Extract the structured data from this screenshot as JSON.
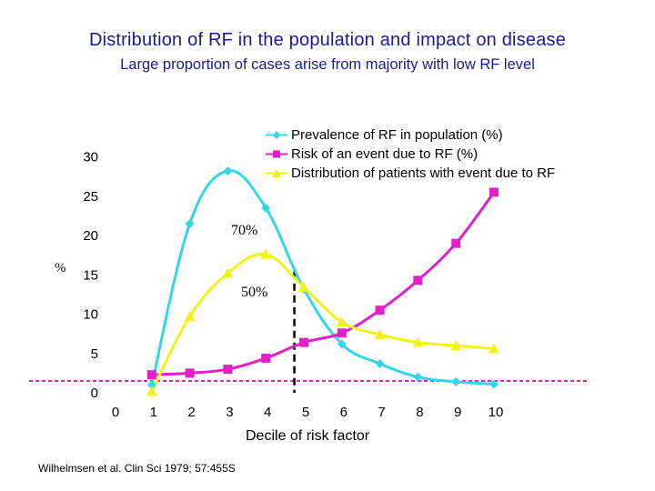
{
  "title": "Distribution of RF in the population and impact on disease",
  "subtitle": "Large proportion of cases arise from majority with low RF level",
  "source": "Wilhelmsen et al. Clin Sci 1979; 57:455S",
  "chart_data": {
    "type": "line",
    "xlabel": "Decile of risk factor",
    "ylabel": "%",
    "x_ticks": [
      0,
      1,
      2,
      3,
      4,
      5,
      6,
      7,
      8,
      9,
      10
    ],
    "y_ticks": [
      0,
      5,
      10,
      15,
      20,
      25,
      30
    ],
    "xlim": [
      0,
      10
    ],
    "ylim": [
      0,
      30
    ],
    "series": [
      {
        "name": "Prevalence of RF in population (%)",
        "color": "#33d6e8",
        "marker": "diamond",
        "x": [
          1,
          2,
          3,
          4,
          5,
          6,
          7,
          8,
          9,
          10
        ],
        "values": [
          1.0,
          21.5,
          28.2,
          23.5,
          13.2,
          6.2,
          3.7,
          2.0,
          1.4,
          1.1
        ]
      },
      {
        "name": "Risk of an event due to RF (%)",
        "color": "#e020c8",
        "marker": "square",
        "x": [
          1,
          2,
          3,
          4,
          5,
          6,
          7,
          8,
          9,
          10
        ],
        "values": [
          2.3,
          2.5,
          3.0,
          4.4,
          6.4,
          7.6,
          10.5,
          14.3,
          19.0,
          25.5
        ]
      },
      {
        "name": "Distribution of patients with event due to RF",
        "color": "#f2f218",
        "marker": "triangle",
        "x": [
          1,
          2,
          3,
          4,
          5,
          6,
          7,
          8,
          9,
          10
        ],
        "values": [
          0.2,
          9.7,
          15.2,
          17.6,
          13.4,
          9.0,
          7.4,
          6.4,
          6.0,
          5.6
        ]
      }
    ],
    "reference_line": {
      "orientation": "horizontal",
      "y": 1.5,
      "style": "dashed",
      "color": "#e020c8"
    },
    "divider_line": {
      "orientation": "vertical",
      "x": 4.75,
      "style": "dashed",
      "color": "#000000"
    },
    "annotations": [
      {
        "text": "70%",
        "x": 3.35,
        "y": 20.5
      },
      {
        "text": "50%",
        "x": 3.9,
        "y": 12.2
      }
    ]
  }
}
